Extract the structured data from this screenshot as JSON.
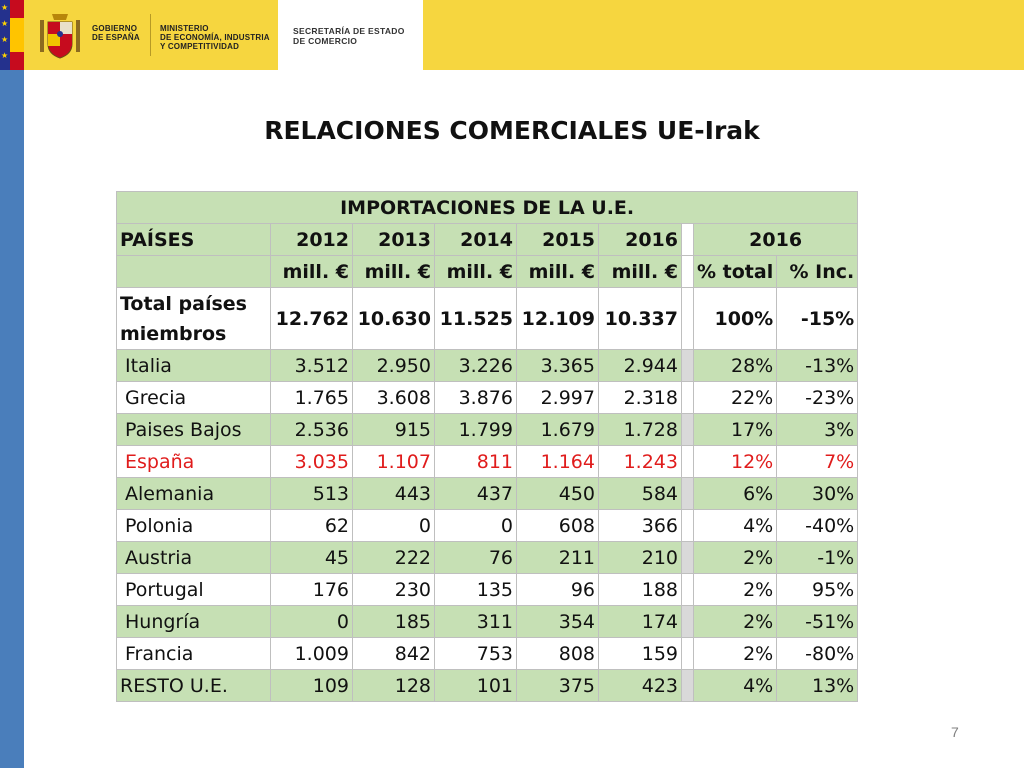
{
  "header": {
    "government_text": "GOBIERNO\nDE ESPAÑA",
    "ministry_text": "MINISTERIO\nDE ECONOMÍA, INDUSTRIA\nY COMPETITIVIDAD",
    "secretariat_text": "SECRETARÍA DE ESTADO\nDE COMERCIO",
    "colors": {
      "yellow": "#f6d63f",
      "stripe_blue": "#4a7ebb",
      "table_green": "#c6e0b4",
      "highlight_red": "#e01c1c"
    }
  },
  "slide": {
    "title": "RELACIONES COMERCIALES UE-Irak",
    "page_number": "7"
  },
  "table": {
    "caption": "IMPORTACIONES DE LA U.E.",
    "header_row": {
      "countries": "PAÍSES",
      "years": [
        "2012",
        "2013",
        "2014",
        "2015",
        "2016"
      ],
      "year_2016": "2016"
    },
    "unit_row": {
      "units": [
        "mill. €",
        "mill. €",
        "mill. €",
        "mill. €",
        "mill. €"
      ],
      "pct_total": "% total",
      "pct_inc": "% Inc."
    },
    "total_row": {
      "label": "Total países miembros",
      "values": [
        "12.762",
        "10.630",
        "11.525",
        "12.109",
        "10.337"
      ],
      "pct_total": "100%",
      "pct_inc": "-15%"
    },
    "rows": [
      {
        "label": "Italia",
        "values": [
          "3.512",
          "2.950",
          "3.226",
          "3.365",
          "2.944"
        ],
        "pct_total": "28%",
        "pct_inc": "-13%"
      },
      {
        "label": "Grecia",
        "values": [
          "1.765",
          "3.608",
          "3.876",
          "2.997",
          "2.318"
        ],
        "pct_total": "22%",
        "pct_inc": "-23%"
      },
      {
        "label": "Paises Bajos",
        "values": [
          "2.536",
          "915",
          "1.799",
          "1.679",
          "1.728"
        ],
        "pct_total": "17%",
        "pct_inc": "3%"
      },
      {
        "label": "España",
        "values": [
          "3.035",
          "1.107",
          "811",
          "1.164",
          "1.243"
        ],
        "pct_total": "12%",
        "pct_inc": "7%"
      },
      {
        "label": "Alemania",
        "values": [
          "513",
          "443",
          "437",
          "450",
          "584"
        ],
        "pct_total": "6%",
        "pct_inc": "30%"
      },
      {
        "label": "Polonia",
        "values": [
          "62",
          "0",
          "0",
          "608",
          "366"
        ],
        "pct_total": "4%",
        "pct_inc": "-40%"
      },
      {
        "label": "Austria",
        "values": [
          "45",
          "222",
          "76",
          "211",
          "210"
        ],
        "pct_total": "2%",
        "pct_inc": "-1%"
      },
      {
        "label": "Portugal",
        "values": [
          "176",
          "230",
          "135",
          "96",
          "188"
        ],
        "pct_total": "2%",
        "pct_inc": "95%"
      },
      {
        "label": "Hungría",
        "values": [
          "0",
          "185",
          "311",
          "354",
          "174"
        ],
        "pct_total": "2%",
        "pct_inc": "-51%"
      },
      {
        "label": "Francia",
        "values": [
          "1.009",
          "842",
          "753",
          "808",
          "159"
        ],
        "pct_total": "2%",
        "pct_inc": "-80%"
      },
      {
        "label": "RESTO U.E.",
        "values": [
          "109",
          "128",
          "101",
          "375",
          "423"
        ],
        "pct_total": "4%",
        "pct_inc": "13%"
      }
    ]
  }
}
